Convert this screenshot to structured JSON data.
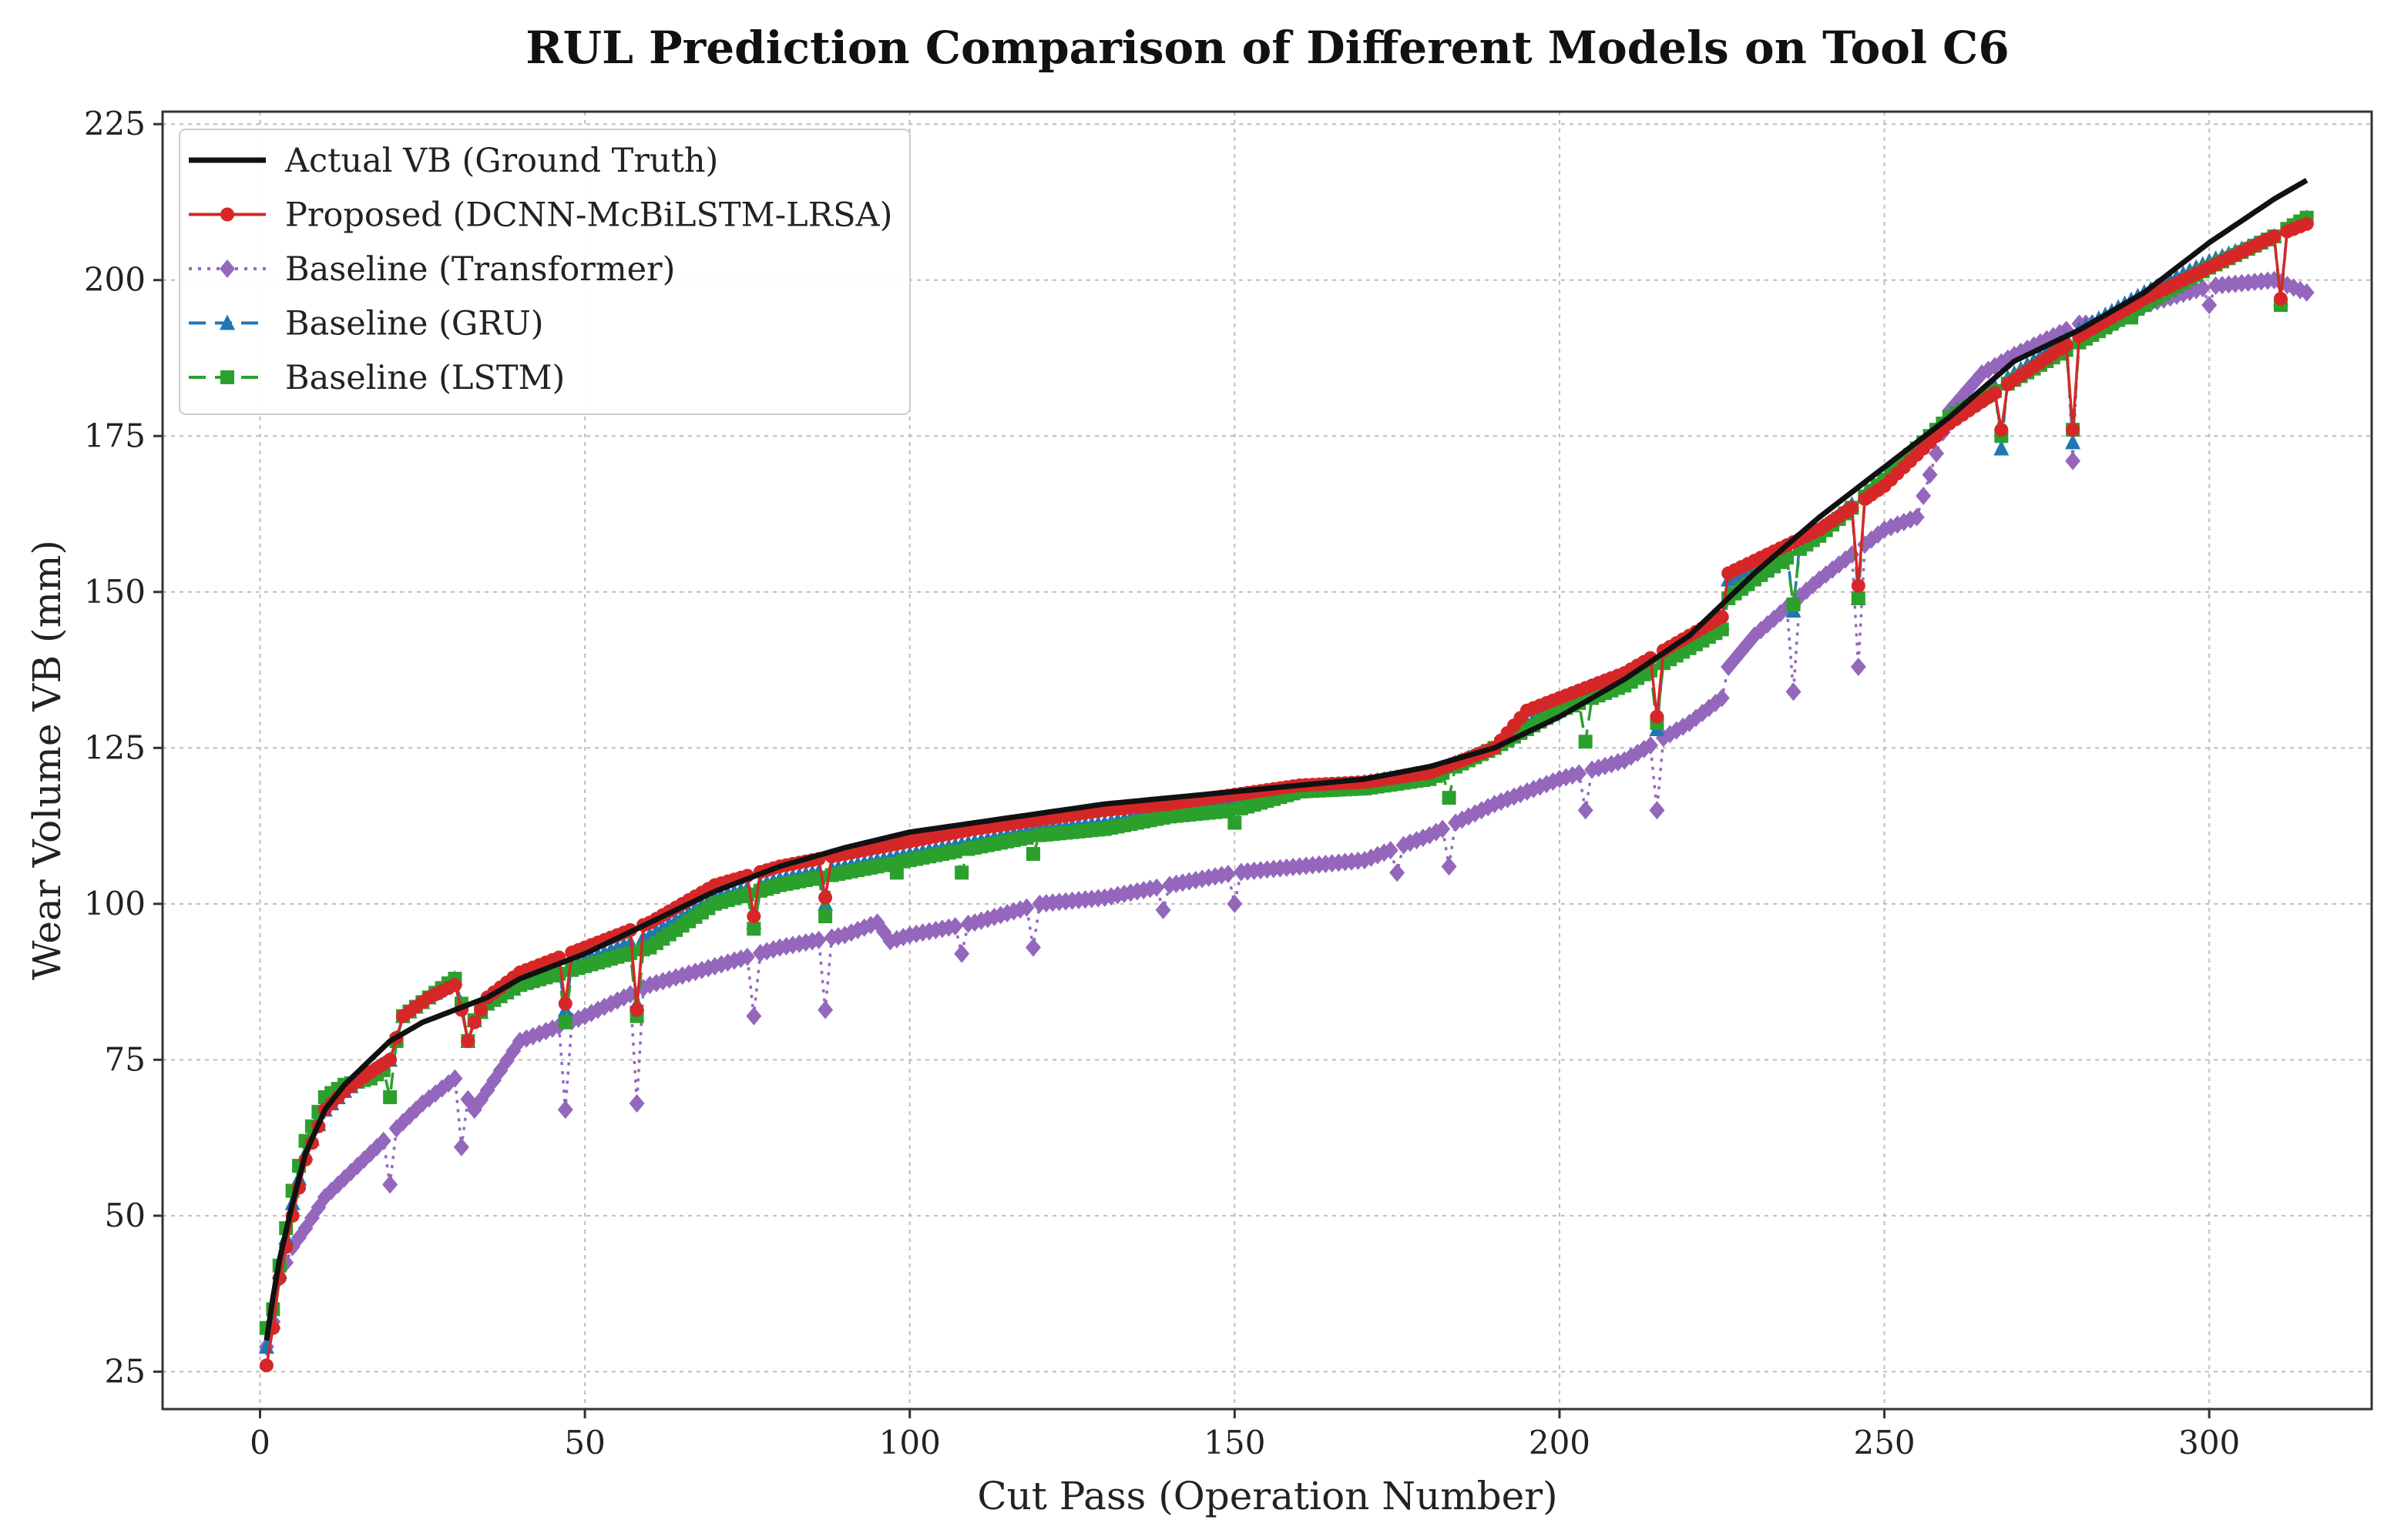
{
  "chart_data": {
    "type": "line",
    "title": "RUL Prediction Comparison of Different Models on Tool C6",
    "xlabel": "Cut Pass (Operation Number)",
    "ylabel": "Wear Volume VB (mm)",
    "xlim": [
      -15,
      325
    ],
    "ylim": [
      19,
      227
    ],
    "xticks": [
      0,
      50,
      100,
      150,
      200,
      250,
      300
    ],
    "yticks": [
      25,
      50,
      75,
      100,
      125,
      150,
      175,
      200,
      225
    ],
    "grid": true,
    "legend_position": "top-left",
    "x_range": [
      1,
      315
    ],
    "series": [
      {
        "name": "Actual VB (Ground Truth)",
        "color": "#111111",
        "marker": "none",
        "line_style": "solid",
        "knots": [
          [
            1,
            30
          ],
          [
            2,
            37
          ],
          [
            3,
            43
          ],
          [
            5,
            52
          ],
          [
            7,
            60
          ],
          [
            10,
            67
          ],
          [
            13,
            71
          ],
          [
            17,
            75
          ],
          [
            20,
            78
          ],
          [
            25,
            81
          ],
          [
            30,
            83
          ],
          [
            35,
            85
          ],
          [
            40,
            88
          ],
          [
            50,
            92
          ],
          [
            60,
            97
          ],
          [
            70,
            102
          ],
          [
            80,
            106
          ],
          [
            90,
            109
          ],
          [
            100,
            111.5
          ],
          [
            110,
            113
          ],
          [
            120,
            114.5
          ],
          [
            130,
            116
          ],
          [
            140,
            117
          ],
          [
            150,
            118
          ],
          [
            160,
            119
          ],
          [
            170,
            120
          ],
          [
            180,
            122
          ],
          [
            190,
            125
          ],
          [
            200,
            130
          ],
          [
            210,
            136
          ],
          [
            220,
            143
          ],
          [
            225,
            148
          ],
          [
            230,
            153
          ],
          [
            240,
            162
          ],
          [
            250,
            170
          ],
          [
            260,
            178
          ],
          [
            270,
            187
          ],
          [
            280,
            192
          ],
          [
            290,
            198
          ],
          [
            300,
            206
          ],
          [
            310,
            213
          ],
          [
            315,
            216
          ]
        ],
        "dips": []
      },
      {
        "name": "Proposed (DCNN-McBiLSTM-LRSA)",
        "color": "#d62728",
        "marker": "circle",
        "line_style": "solid",
        "knots": [
          [
            1,
            26
          ],
          [
            2,
            32
          ],
          [
            3,
            40
          ],
          [
            5,
            50
          ],
          [
            7,
            59
          ],
          [
            10,
            67
          ],
          [
            13,
            70
          ],
          [
            17,
            73
          ],
          [
            20,
            75
          ],
          [
            22,
            82
          ],
          [
            26,
            85
          ],
          [
            30,
            87
          ],
          [
            32,
            79
          ],
          [
            35,
            85
          ],
          [
            40,
            89
          ],
          [
            50,
            93
          ],
          [
            60,
            97
          ],
          [
            70,
            103
          ],
          [
            80,
            106
          ],
          [
            90,
            108
          ],
          [
            100,
            110
          ],
          [
            110,
            112
          ],
          [
            120,
            113.5
          ],
          [
            130,
            115
          ],
          [
            140,
            116
          ],
          [
            150,
            117.5
          ],
          [
            160,
            119
          ],
          [
            170,
            119.5
          ],
          [
            180,
            121
          ],
          [
            190,
            125
          ],
          [
            195,
            131
          ],
          [
            200,
            133
          ],
          [
            210,
            137
          ],
          [
            220,
            143
          ],
          [
            225,
            146
          ],
          [
            226,
            153
          ],
          [
            230,
            155
          ],
          [
            240,
            160
          ],
          [
            250,
            167
          ],
          [
            260,
            177
          ],
          [
            270,
            184
          ],
          [
            280,
            191
          ],
          [
            290,
            197
          ],
          [
            300,
            202
          ],
          [
            310,
            207
          ],
          [
            315,
            209
          ]
        ],
        "dips": [
          [
            32,
            78
          ],
          [
            47,
            84
          ],
          [
            58,
            83
          ],
          [
            76,
            98
          ],
          [
            87,
            101
          ],
          [
            215,
            130
          ],
          [
            246,
            151
          ],
          [
            268,
            176
          ],
          [
            279,
            176
          ],
          [
            311,
            197
          ]
        ]
      },
      {
        "name": "Baseline (Transformer)",
        "color": "#9467bd",
        "marker": "diamond",
        "line_style": "dotted",
        "knots": [
          [
            1,
            29
          ],
          [
            2,
            33
          ],
          [
            3,
            40
          ],
          [
            5,
            45
          ],
          [
            7,
            48
          ],
          [
            10,
            53
          ],
          [
            13,
            56
          ],
          [
            17,
            60
          ],
          [
            20,
            63
          ],
          [
            25,
            68
          ],
          [
            30,
            72
          ],
          [
            33,
            67
          ],
          [
            40,
            78
          ],
          [
            50,
            82
          ],
          [
            60,
            87
          ],
          [
            70,
            90
          ],
          [
            80,
            93
          ],
          [
            90,
            95
          ],
          [
            95,
            97
          ],
          [
            97,
            94
          ],
          [
            100,
            95
          ],
          [
            110,
            97
          ],
          [
            120,
            100
          ],
          [
            130,
            101
          ],
          [
            140,
            103
          ],
          [
            150,
            105
          ],
          [
            160,
            106
          ],
          [
            170,
            107
          ],
          [
            180,
            111
          ],
          [
            190,
            116
          ],
          [
            200,
            120
          ],
          [
            210,
            123
          ],
          [
            220,
            129
          ],
          [
            225,
            133
          ],
          [
            226,
            138
          ],
          [
            230,
            143
          ],
          [
            240,
            152
          ],
          [
            250,
            160
          ],
          [
            255,
            162
          ],
          [
            260,
            179
          ],
          [
            265,
            185
          ],
          [
            270,
            188
          ],
          [
            280,
            193
          ],
          [
            285,
            193
          ],
          [
            290,
            196
          ],
          [
            300,
            199
          ],
          [
            310,
            200
          ],
          [
            315,
            198
          ]
        ],
        "dips": [
          [
            20,
            55
          ],
          [
            31,
            61
          ],
          [
            47,
            67
          ],
          [
            58,
            68
          ],
          [
            76,
            82
          ],
          [
            87,
            83
          ],
          [
            108,
            92
          ],
          [
            119,
            93
          ],
          [
            139,
            99
          ],
          [
            150,
            100
          ],
          [
            175,
            105
          ],
          [
            183,
            106
          ],
          [
            204,
            115
          ],
          [
            215,
            115
          ],
          [
            236,
            134
          ],
          [
            246,
            138
          ],
          [
            279,
            171
          ],
          [
            300,
            196
          ]
        ]
      },
      {
        "name": "Baseline (GRU)",
        "color": "#1f77b4",
        "marker": "triangle",
        "line_style": "dashed",
        "knots": [
          [
            1,
            29
          ],
          [
            2,
            33
          ],
          [
            3,
            41
          ],
          [
            5,
            52
          ],
          [
            7,
            60
          ],
          [
            10,
            67
          ],
          [
            13,
            70
          ],
          [
            17,
            73
          ],
          [
            20,
            75
          ],
          [
            22,
            82
          ],
          [
            26,
            85
          ],
          [
            30,
            88
          ],
          [
            32,
            80
          ],
          [
            35,
            84
          ],
          [
            40,
            87
          ],
          [
            50,
            91
          ],
          [
            60,
            95
          ],
          [
            70,
            101
          ],
          [
            80,
            104
          ],
          [
            90,
            106
          ],
          [
            100,
            108
          ],
          [
            110,
            110
          ],
          [
            120,
            112
          ],
          [
            130,
            113
          ],
          [
            140,
            115
          ],
          [
            150,
            116
          ],
          [
            160,
            118
          ],
          [
            170,
            119.5
          ],
          [
            180,
            121
          ],
          [
            190,
            125
          ],
          [
            195,
            129
          ],
          [
            200,
            132
          ],
          [
            210,
            136
          ],
          [
            220,
            142
          ],
          [
            225,
            145
          ],
          [
            226,
            152
          ],
          [
            230,
            154
          ],
          [
            240,
            160
          ],
          [
            250,
            168
          ],
          [
            260,
            178
          ],
          [
            270,
            185
          ],
          [
            280,
            192
          ],
          [
            290,
            198
          ],
          [
            300,
            203
          ],
          [
            310,
            207
          ],
          [
            315,
            210
          ]
        ],
        "dips": [
          [
            32,
            78
          ],
          [
            47,
            83
          ],
          [
            58,
            84
          ],
          [
            76,
            97
          ],
          [
            87,
            100
          ],
          [
            215,
            128
          ],
          [
            236,
            147
          ],
          [
            246,
            149
          ],
          [
            268,
            173
          ],
          [
            279,
            174
          ],
          [
            311,
            197
          ]
        ]
      },
      {
        "name": "Baseline (LSTM)",
        "color": "#2ca02c",
        "marker": "square",
        "line_style": "dashed",
        "knots": [
          [
            1,
            32
          ],
          [
            2,
            35
          ],
          [
            3,
            42
          ],
          [
            5,
            54
          ],
          [
            7,
            62
          ],
          [
            10,
            69
          ],
          [
            13,
            71
          ],
          [
            17,
            72
          ],
          [
            20,
            74
          ],
          [
            22,
            82
          ],
          [
            26,
            85
          ],
          [
            30,
            88
          ],
          [
            32,
            80
          ],
          [
            35,
            84
          ],
          [
            40,
            87
          ],
          [
            50,
            90
          ],
          [
            60,
            93
          ],
          [
            70,
            100
          ],
          [
            80,
            103
          ],
          [
            90,
            105
          ],
          [
            100,
            107
          ],
          [
            110,
            109
          ],
          [
            120,
            111
          ],
          [
            130,
            112
          ],
          [
            140,
            114
          ],
          [
            150,
            115
          ],
          [
            160,
            118
          ],
          [
            170,
            118.5
          ],
          [
            180,
            120
          ],
          [
            190,
            125
          ],
          [
            195,
            128
          ],
          [
            200,
            131
          ],
          [
            210,
            135
          ],
          [
            220,
            141
          ],
          [
            225,
            144
          ],
          [
            226,
            149
          ],
          [
            230,
            152
          ],
          [
            240,
            159
          ],
          [
            250,
            168
          ],
          [
            260,
            178
          ],
          [
            270,
            184
          ],
          [
            280,
            190
          ],
          [
            290,
            196
          ],
          [
            300,
            202
          ],
          [
            310,
            207
          ],
          [
            315,
            210
          ]
        ],
        "dips": [
          [
            20,
            69
          ],
          [
            32,
            78
          ],
          [
            47,
            81
          ],
          [
            58,
            82
          ],
          [
            76,
            96
          ],
          [
            87,
            98
          ],
          [
            98,
            105
          ],
          [
            108,
            105
          ],
          [
            119,
            108
          ],
          [
            150,
            113
          ],
          [
            183,
            117
          ],
          [
            204,
            126
          ],
          [
            215,
            129
          ],
          [
            236,
            148
          ],
          [
            246,
            149
          ],
          [
            268,
            175
          ],
          [
            279,
            176
          ],
          [
            288,
            194
          ],
          [
            311,
            196
          ]
        ]
      }
    ]
  }
}
